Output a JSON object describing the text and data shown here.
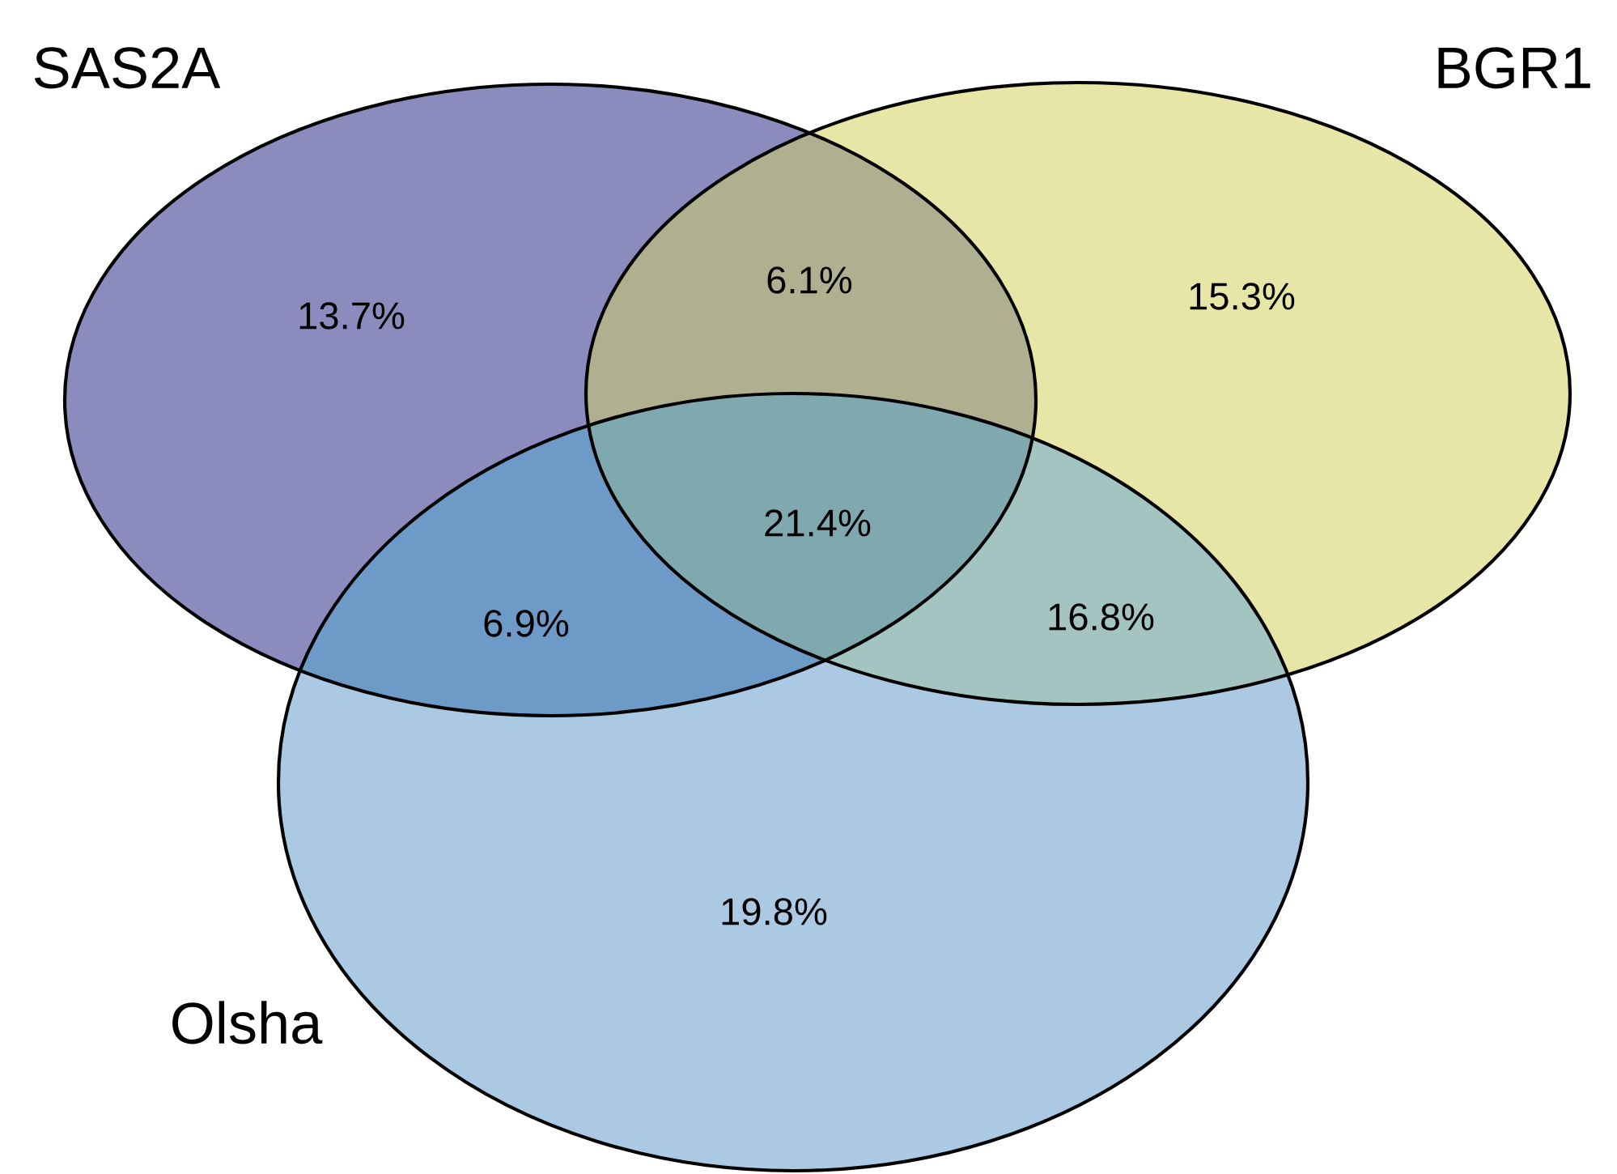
{
  "chart_data": {
    "type": "other",
    "categories": [
      null,
      null,
      null,
      null,
      null,
      null,
      null
    ],
    "values": [
      13.7,
      6.1,
      15.3,
      21.4,
      6.9,
      16.8,
      19.8
    ],
    "value_labels": [
      "13.7%",
      "6.1%",
      "15.3%",
      "21.4%",
      "6.9%",
      "16.8%",
      "19.8%"
    ],
    "colors": [
      "#8b8bbd",
      "#afb08f",
      "#e8e6a6",
      "#7fa9ae",
      "#6e9ac7",
      "#a3c4c0",
      "#abc9e3"
    ],
    "annotations": [
      "SAS2A",
      "BGR1",
      "Olsha"
    ]
  }
}
